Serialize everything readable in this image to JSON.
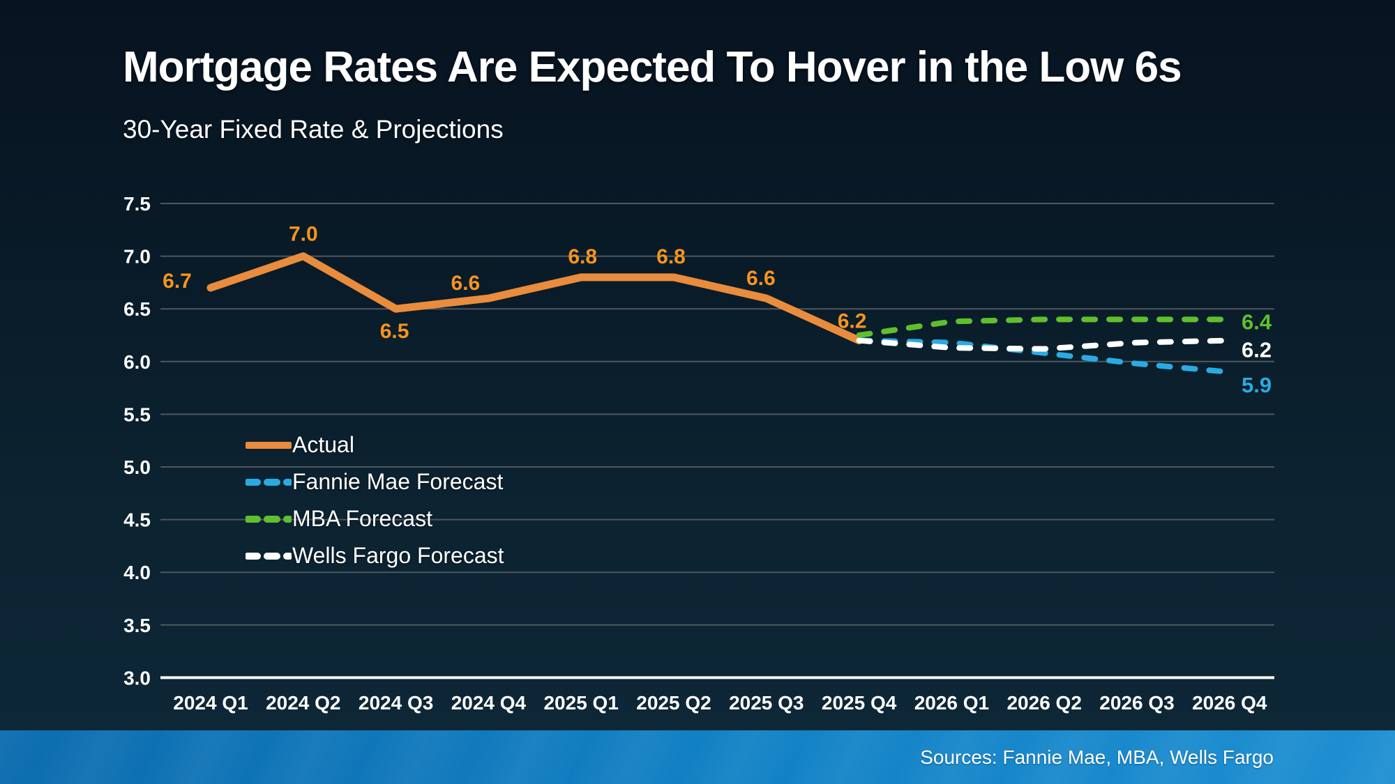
{
  "header": {
    "title": "Mortgage Rates Are Expected To Hover in the Low 6s",
    "subtitle": "30-Year Fixed Rate & Projections"
  },
  "footer": {
    "sources": "Sources: Fannie Mae, MBA, Wells Fargo"
  },
  "colors": {
    "actual_line_orange": "#E98C3D",
    "data_label_orange": "#F7941E",
    "fannie_mae_blue": "#29ABE2",
    "mba_green": "#5FBF2D",
    "wells_fargo_white": "#FFFFFF",
    "gridline_gray": "#4E585F",
    "baseline_axis_white": "#FFFFFF",
    "footer_bar_blue": "#1282C6",
    "background_navy": "#0A1C2A"
  },
  "chart_data": {
    "type": "line",
    "title": "30-Year Fixed Rate & Projections",
    "categories": [
      "2024 Q1",
      "2024 Q2",
      "2024 Q3",
      "2024 Q4",
      "2025 Q1",
      "2025 Q2",
      "2025 Q3",
      "2025 Q4",
      "2026 Q1",
      "2026 Q2",
      "2026 Q3",
      "2026 Q4"
    ],
    "ylim": [
      3.0,
      7.5
    ],
    "yticks": [
      "7.5",
      "7.0",
      "6.5",
      "6.0",
      "5.5",
      "5.0",
      "4.5",
      "4.0",
      "3.5",
      "3.0"
    ],
    "grid": true,
    "legend_position": "center-left",
    "series": [
      {
        "name": "Actual",
        "style": "solid",
        "color": "#E98C3D",
        "label_color": "#F7941E",
        "start_index": 0,
        "values": [
          6.7,
          7.0,
          6.5,
          6.6,
          6.8,
          6.8,
          6.6,
          6.2
        ],
        "point_labels": [
          "6.7",
          "7.0",
          "6.5",
          "6.6",
          "6.8",
          "6.8",
          "6.6",
          "6.2"
        ]
      },
      {
        "name": "Fannie Mae Forecast",
        "style": "dashed",
        "color": "#29ABE2",
        "start_index": 7,
        "values": [
          6.2,
          6.18,
          6.08,
          5.98,
          5.9
        ],
        "end_label": "5.9"
      },
      {
        "name": "MBA Forecast",
        "style": "dashed",
        "color": "#5FBF2D",
        "start_index": 7,
        "values": [
          6.25,
          6.38,
          6.4,
          6.4,
          6.4
        ],
        "end_label": "6.4"
      },
      {
        "name": "Wells Fargo Forecast",
        "style": "dashed",
        "color": "#FFFFFF",
        "start_index": 7,
        "values": [
          6.2,
          6.13,
          6.12,
          6.18,
          6.2
        ],
        "end_label": "6.2"
      }
    ]
  }
}
